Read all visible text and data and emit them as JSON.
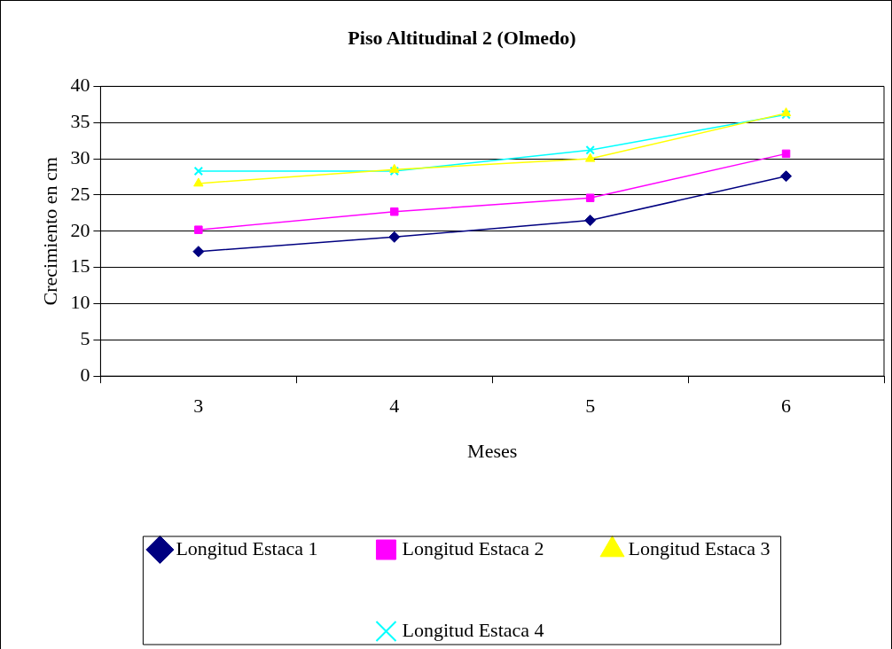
{
  "chart_data": {
    "type": "line",
    "title": "Piso Altitudinal 2 (Olmedo)",
    "xlabel": "Meses",
    "ylabel": "Crecimiento en cm",
    "categories": [
      "3",
      "4",
      "5",
      "6"
    ],
    "series": [
      {
        "name": "Longitud Estaca 1",
        "color": "#000080",
        "marker": "diamond",
        "values": [
          17.2,
          19.2,
          21.5,
          27.6
        ]
      },
      {
        "name": "Longitud Estaca 2",
        "color": "#ff00ff",
        "marker": "square",
        "values": [
          20.2,
          22.7,
          24.6,
          30.7
        ]
      },
      {
        "name": "Longitud Estaca 3",
        "color": "#ffff00",
        "marker": "triangle",
        "values": [
          26.6,
          28.5,
          30.0,
          36.3
        ]
      },
      {
        "name": "Longitud Estaca 4",
        "color": "#00ffff",
        "marker": "cross",
        "values": [
          28.3,
          28.3,
          31.2,
          36.1
        ]
      }
    ],
    "ylim": [
      0,
      40
    ],
    "yticks": [
      0,
      5,
      10,
      15,
      20,
      25,
      30,
      35,
      40
    ],
    "grid": "y",
    "legend": "bottom",
    "line_style": "solid"
  }
}
